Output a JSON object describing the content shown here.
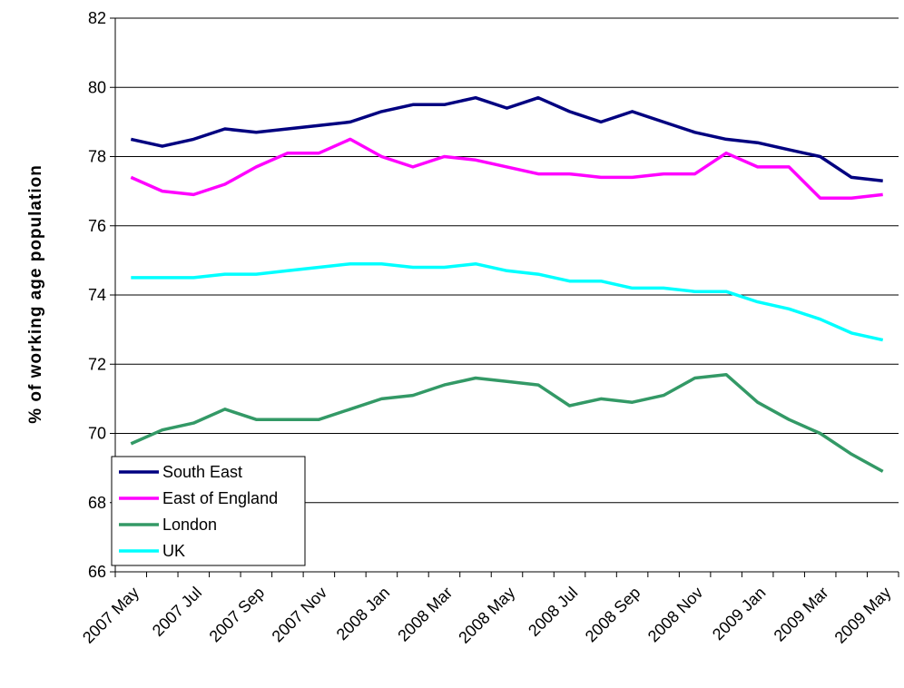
{
  "chart_data": {
    "type": "line",
    "title": "",
    "xlabel": "",
    "ylabel": "% of working age population",
    "ylim": [
      66,
      82
    ],
    "y_ticks": [
      "66",
      "68",
      "70",
      "72",
      "74",
      "76",
      "78",
      "80",
      "82"
    ],
    "grid": "horizontal",
    "legend_position": "bottom-left",
    "x": [
      "2007 May",
      "2007 Jun",
      "2007 Jul",
      "2007 Aug",
      "2007 Sep",
      "2007 Oct",
      "2007 Nov",
      "2007 Dec",
      "2008 Jan",
      "2008 Feb",
      "2008 Mar",
      "2008 Apr",
      "2008 May",
      "2008 Jun",
      "2008 Jul",
      "2008 Aug",
      "2008 Sep",
      "2008 Oct",
      "2008 Nov",
      "2008 Dec",
      "2009 Jan",
      "2009 Feb",
      "2009 Mar",
      "2009 Apr",
      "2009 May"
    ],
    "x_tick_labels": [
      "2007 May",
      "2007 Jul",
      "2007 Sep",
      "2007 Nov",
      "2008 Jan",
      "2008 Mar",
      "2008 May",
      "2008 Jul",
      "2008 Sep",
      "2008 Nov",
      "2009 Jan",
      "2009 Mar",
      "2009 May"
    ],
    "series": [
      {
        "name": "South East",
        "color": "#000080",
        "values": [
          78.5,
          78.3,
          78.5,
          78.8,
          78.7,
          78.8,
          78.9,
          79.0,
          79.3,
          79.5,
          79.5,
          79.7,
          79.4,
          79.7,
          79.3,
          79.0,
          79.3,
          79.0,
          78.7,
          78.5,
          78.4,
          78.2,
          78.0,
          77.4,
          77.3
        ]
      },
      {
        "name": "East of England",
        "color": "#FF00FF",
        "values": [
          77.4,
          77.0,
          76.9,
          77.2,
          77.7,
          78.1,
          78.1,
          78.5,
          78.0,
          77.7,
          78.0,
          77.9,
          77.7,
          77.5,
          77.5,
          77.4,
          77.4,
          77.5,
          77.5,
          78.1,
          77.7,
          77.7,
          76.8,
          76.8,
          76.9
        ]
      },
      {
        "name": "London",
        "color": "#339966",
        "values": [
          69.7,
          70.1,
          70.3,
          70.7,
          70.4,
          70.4,
          70.4,
          70.7,
          71.0,
          71.1,
          71.4,
          71.6,
          71.5,
          71.4,
          70.8,
          71.0,
          70.9,
          71.1,
          71.6,
          71.7,
          70.9,
          70.4,
          70.0,
          69.4,
          68.9
        ]
      },
      {
        "name": "UK",
        "color": "#00FFFF",
        "values": [
          74.5,
          74.5,
          74.5,
          74.6,
          74.6,
          74.7,
          74.8,
          74.9,
          74.9,
          74.8,
          74.8,
          74.9,
          74.7,
          74.6,
          74.4,
          74.4,
          74.2,
          74.2,
          74.1,
          74.1,
          73.8,
          73.6,
          73.3,
          72.9,
          72.7
        ]
      }
    ]
  }
}
